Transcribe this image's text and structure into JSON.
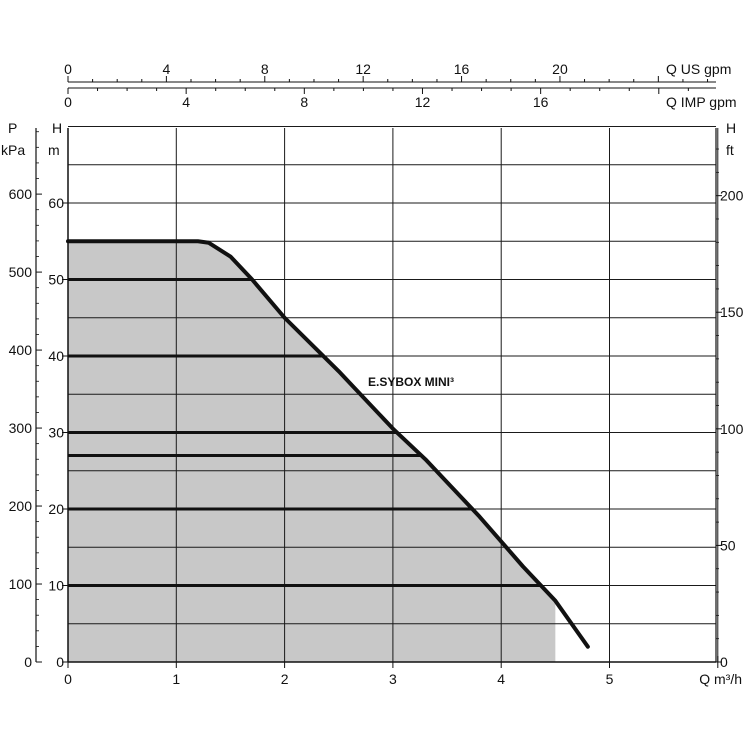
{
  "chart_data": {
    "type": "area",
    "title": "",
    "grid": true,
    "x_axis": {
      "label": "Q m³/h",
      "range": [
        0,
        6
      ],
      "ticks": [
        0,
        1,
        2,
        3,
        4,
        5
      ]
    },
    "y_axis_left_m": {
      "label_top": "H",
      "label_unit": "m",
      "range": [
        0,
        70
      ],
      "ticks": [
        0,
        10,
        20,
        30,
        40,
        50,
        60
      ]
    },
    "y_axis_left_kpa": {
      "label_top": "P",
      "label_unit": "kPa",
      "range": [
        0,
        686.7
      ],
      "ticks": [
        0,
        100,
        200,
        300,
        400,
        500,
        600
      ]
    },
    "y_axis_right_ft": {
      "label_top": "H",
      "label_unit": "ft",
      "range": [
        0,
        229.7
      ],
      "ticks": [
        0,
        50,
        100,
        150,
        200
      ]
    },
    "top_axis_us": {
      "label": "Q US gpm",
      "range": [
        0,
        26.4
      ],
      "ticks": [
        0,
        4,
        8,
        12,
        16,
        20
      ]
    },
    "top_axis_imp": {
      "label": "Q IMP gpm",
      "range": [
        0,
        22
      ],
      "ticks": [
        0,
        4,
        8,
        12,
        16
      ]
    },
    "series": [
      {
        "name": "E.SYBOX MINI³",
        "x": [
          0,
          1.2,
          1.3,
          1.5,
          1.7,
          2.0,
          2.5,
          3.0,
          3.3,
          3.5,
          3.8,
          4.2,
          4.5,
          4.8
        ],
        "y": [
          55,
          55,
          54.8,
          53,
          50,
          45,
          38,
          30.5,
          26.5,
          23.5,
          19,
          12.5,
          8,
          2
        ]
      }
    ],
    "operating_lines_m": [
      50,
      40,
      30,
      27,
      20,
      10
    ],
    "shaded_region": {
      "color": "#c8c8c8",
      "x_max_at_zero": 4.5
    },
    "colors": {
      "grid": "#1a1a1a",
      "curve": "#111111",
      "fill": "#c8c8c8"
    }
  }
}
